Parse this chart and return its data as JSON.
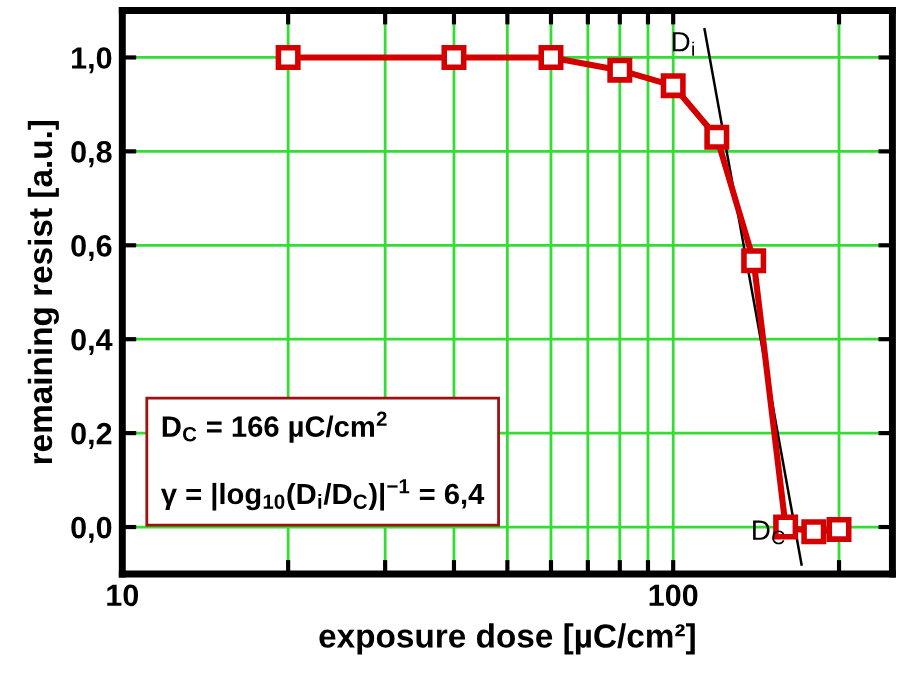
{
  "chart_data": {
    "type": "line",
    "xlabel": "exposure dose [µC/cm²]",
    "ylabel": "remaining resist [a.u.]",
    "log": "x",
    "xlim": [
      10,
      250
    ],
    "ylim": [
      -0.1,
      1.1
    ],
    "xticks": [
      10,
      {
        "value": 20,
        "label": null
      },
      {
        "value": 30,
        "label": null
      },
      {
        "value": 40,
        "label": null
      },
      {
        "value": 50,
        "label": null
      },
      {
        "value": 60,
        "label": null
      },
      {
        "value": 70,
        "label": null
      },
      {
        "value": 80,
        "label": null
      },
      {
        "value": 90,
        "label": null
      },
      100,
      {
        "value": 200,
        "label": null
      }
    ],
    "yticks": [
      {
        "value": 0,
        "label": "0,0"
      },
      {
        "value": 0.2,
        "label": "0,2"
      },
      {
        "value": 0.4,
        "label": "0,4"
      },
      {
        "value": 0.6,
        "label": "0,6"
      },
      {
        "value": 0.8,
        "label": "0,8"
      },
      {
        "value": 1.0,
        "label": "1,0"
      }
    ],
    "grid": true,
    "marker": "square",
    "series": [
      {
        "color": "#d40000",
        "x": [
          20,
          40,
          60,
          80,
          100,
          120,
          140,
          160,
          180,
          200
        ],
        "values": [
          1.0,
          1.0,
          1.0,
          0.973,
          0.94,
          0.83,
          0.567,
          0.0,
          -0.01,
          -0.005
        ]
      },
      {
        "type": "line",
        "marker": "none",
        "color": "#000000",
        "x": [
          114,
          171
        ],
        "values": [
          1.06,
          -0.08
        ]
      }
    ],
    "annotations": [
      {
        "text": "D$_{i}$",
        "x": 114,
        "y": 1.04
      },
      {
        "text": "D$_{C}$",
        "x": 166,
        "y": 0.0
      },
      "D$_{C}$ = 166 µC/cm$^{2}$",
      "γ = |log$_{10}$(D$_{i}$/D$_{C}$)|$^{−1}$ = 6,4"
    ]
  }
}
